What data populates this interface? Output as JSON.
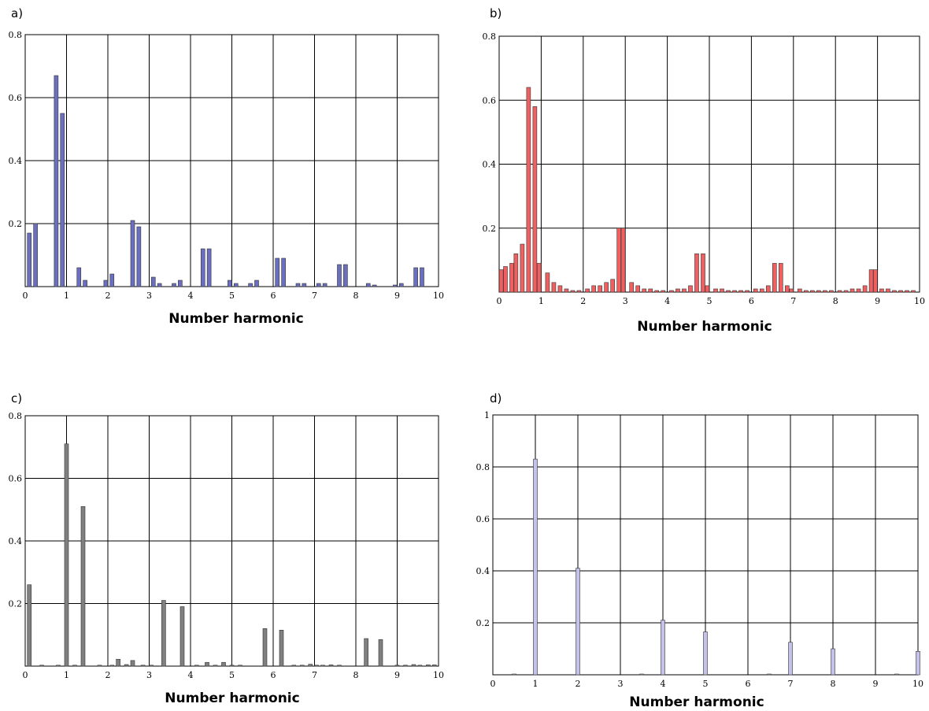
{
  "chart_data": [
    {
      "type": "bar",
      "panel_label": "a)",
      "xlabel": "Number harmonic",
      "xlim": [
        0,
        10
      ],
      "ylim": [
        0,
        0.8
      ],
      "xticks": [
        "0",
        "1",
        "2",
        "3",
        "4",
        "5",
        "6",
        "7",
        "8",
        "9",
        "10"
      ],
      "yticks": [
        "0.2",
        "0.4",
        "0.6",
        "0.8"
      ],
      "grid": true,
      "bar_color": "#6b6fbf",
      "x": [
        0.1,
        0.25,
        0.75,
        0.9,
        1.3,
        1.45,
        1.95,
        2.1,
        2.6,
        2.75,
        3.1,
        3.25,
        3.6,
        3.75,
        4.3,
        4.45,
        4.95,
        5.1,
        5.45,
        5.6,
        6.1,
        6.25,
        6.6,
        6.75,
        7.1,
        7.25,
        7.6,
        7.75,
        8.3,
        8.45,
        8.95,
        9.1,
        9.45,
        9.6
      ],
      "values": [
        0.17,
        0.2,
        0.67,
        0.55,
        0.06,
        0.02,
        0.02,
        0.04,
        0.21,
        0.19,
        0.03,
        0.01,
        0.01,
        0.02,
        0.12,
        0.12,
        0.02,
        0.01,
        0.01,
        0.02,
        0.09,
        0.09,
        0.01,
        0.01,
        0.01,
        0.01,
        0.07,
        0.07,
        0.01,
        0.005,
        0.005,
        0.01,
        0.06,
        0.06
      ]
    },
    {
      "type": "bar",
      "panel_label": "b)",
      "xlabel": "Number harmonic",
      "xlim": [
        0,
        10
      ],
      "ylim": [
        0,
        0.8
      ],
      "xticks": [
        "0",
        "1",
        "2",
        "3",
        "4",
        "5",
        "6",
        "7",
        "8",
        "9",
        "10"
      ],
      "yticks": [
        "0.2",
        "0.4",
        "0.6",
        "0.8"
      ],
      "grid": true,
      "bar_color": "#f06060",
      "x": [
        0.05,
        0.15,
        0.3,
        0.4,
        0.55,
        0.7,
        0.85,
        0.95,
        1.15,
        1.3,
        1.45,
        1.6,
        1.75,
        1.9,
        2.1,
        2.25,
        2.4,
        2.55,
        2.7,
        2.85,
        2.95,
        3.15,
        3.3,
        3.45,
        3.6,
        3.75,
        3.9,
        4.1,
        4.25,
        4.4,
        4.55,
        4.7,
        4.85,
        4.95,
        5.15,
        5.3,
        5.45,
        5.6,
        5.75,
        5.9,
        6.1,
        6.25,
        6.4,
        6.55,
        6.7,
        6.85,
        6.95,
        7.15,
        7.3,
        7.45,
        7.6,
        7.75,
        7.9,
        8.1,
        8.25,
        8.4,
        8.55,
        8.7,
        8.85,
        8.95,
        9.1,
        9.25,
        9.4,
        9.55,
        9.7,
        9.85
      ],
      "values": [
        0.07,
        0.08,
        0.09,
        0.12,
        0.15,
        0.64,
        0.58,
        0.09,
        0.06,
        0.03,
        0.02,
        0.01,
        0.005,
        0.005,
        0.01,
        0.02,
        0.02,
        0.03,
        0.04,
        0.2,
        0.2,
        0.03,
        0.02,
        0.01,
        0.01,
        0.005,
        0.005,
        0.005,
        0.01,
        0.01,
        0.02,
        0.12,
        0.12,
        0.02,
        0.01,
        0.01,
        0.005,
        0.005,
        0.005,
        0.005,
        0.01,
        0.01,
        0.02,
        0.09,
        0.09,
        0.02,
        0.01,
        0.01,
        0.005,
        0.005,
        0.005,
        0.005,
        0.005,
        0.005,
        0.005,
        0.01,
        0.01,
        0.02,
        0.07,
        0.07,
        0.01,
        0.01,
        0.005,
        0.005,
        0.005,
        0.005
      ]
    },
    {
      "type": "bar",
      "panel_label": "c)",
      "xlabel": "Number harmonic",
      "xlim": [
        0,
        10
      ],
      "ylim": [
        0,
        0.8
      ],
      "xticks": [
        "0",
        "1",
        "2",
        "3",
        "4",
        "5",
        "6",
        "7",
        "8",
        "9",
        "10"
      ],
      "yticks": [
        "0.2",
        "0.4",
        "0.6",
        "0.8"
      ],
      "grid": true,
      "bar_color": "#808080",
      "x": [
        0.1,
        0.4,
        0.8,
        1.0,
        1.2,
        1.4,
        1.8,
        2.1,
        2.25,
        2.45,
        2.6,
        2.85,
        3.05,
        3.35,
        3.8,
        4.15,
        4.4,
        4.6,
        4.8,
        5.0,
        5.2,
        5.8,
        6.2,
        6.5,
        6.7,
        6.9,
        7.05,
        7.2,
        7.4,
        7.6,
        8.25,
        8.6,
        9.0,
        9.2,
        9.4,
        9.55,
        9.75,
        9.9
      ],
      "values": [
        0.26,
        0.003,
        0.003,
        0.71,
        0.003,
        0.51,
        0.003,
        0.003,
        0.022,
        0.005,
        0.018,
        0.003,
        0.003,
        0.21,
        0.19,
        0.003,
        0.012,
        0.003,
        0.012,
        0.003,
        0.003,
        0.12,
        0.115,
        0.003,
        0.003,
        0.006,
        0.003,
        0.003,
        0.004,
        0.003,
        0.088,
        0.085,
        0.003,
        0.003,
        0.005,
        0.003,
        0.004,
        0.004
      ]
    },
    {
      "type": "bar",
      "panel_label": "d)",
      "xlabel": "Number harmonic",
      "xlim": [
        0,
        10
      ],
      "ylim": [
        0,
        1
      ],
      "xticks": [
        "0",
        "1",
        "2",
        "3",
        "4",
        "5",
        "6",
        "7",
        "8",
        "9",
        "10"
      ],
      "yticks": [
        "0.2",
        "0.4",
        "0.6",
        "0.8",
        "1"
      ],
      "grid": true,
      "bar_color": "#c4c2ea",
      "x": [
        0.5,
        1.0,
        2.0,
        3.5,
        4.0,
        5.0,
        6.5,
        7.0,
        8.0,
        9.5,
        10.0
      ],
      "values": [
        0.003,
        0.83,
        0.41,
        0.003,
        0.21,
        0.165,
        0.003,
        0.125,
        0.1,
        0.003,
        0.09
      ]
    }
  ]
}
